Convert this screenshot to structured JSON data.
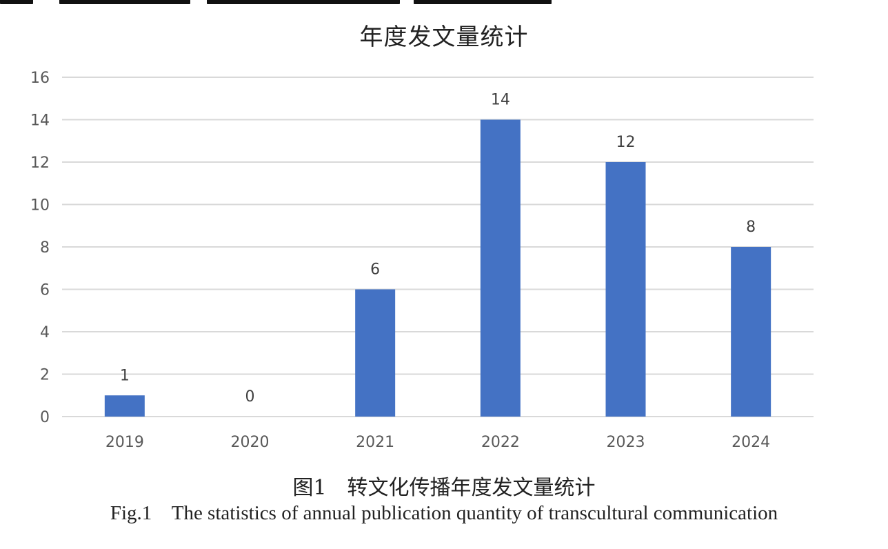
{
  "chart_data": {
    "type": "bar",
    "title": "年度发文量统计",
    "categories": [
      "2019",
      "2020",
      "2021",
      "2022",
      "2023",
      "2024"
    ],
    "values": [
      1,
      0,
      6,
      14,
      12,
      8
    ],
    "data_labels": [
      "1",
      "0",
      "6",
      "14",
      "12",
      "8"
    ],
    "ylim": [
      0,
      16
    ],
    "yticks": [
      "0",
      "2",
      "4",
      "6",
      "8",
      "10",
      "12",
      "14",
      "16"
    ],
    "xlabel": "",
    "ylabel": "",
    "grid": true,
    "legend": "none",
    "bar_color": "#4472C4",
    "grid_color": "#D9D9D9"
  },
  "caption": {
    "cn": "图1　转文化传播年度发文量统计",
    "en": "Fig.1    The statistics of annual publication quantity of transcultural communication"
  }
}
